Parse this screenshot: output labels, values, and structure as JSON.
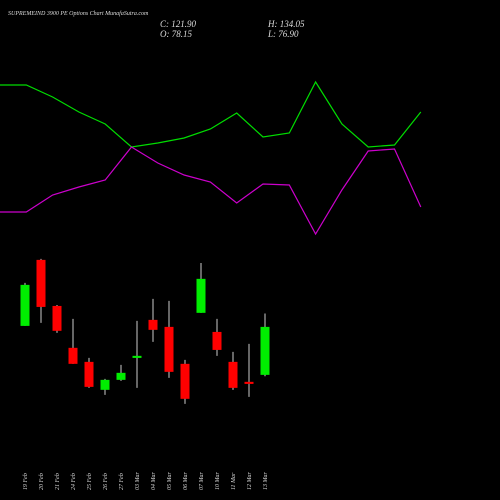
{
  "chart_data": [
    {
      "type": "candlestick",
      "title": "SUPREMEIND 3900 PE Options Chart MunafaSutra.com",
      "ohlc_labels": [
        "C: 121.90",
        "H: 134.05",
        "O: 78.15",
        "L: 76.90"
      ],
      "categories": [
        "19 Feb",
        "20 Feb",
        "21 Feb",
        "24 Feb",
        "25 Feb",
        "26 Feb",
        "27 Feb",
        "03 Mar",
        "04 Mar",
        "05 Mar",
        "06 Mar",
        "07 Mar",
        "10 Mar",
        "11 Mar",
        "12 Mar",
        "13 Mar"
      ],
      "open": [
        122.8,
        183.0,
        141.0,
        102.8,
        90.0,
        64.5,
        73.6,
        93.6,
        128.3,
        121.9,
        88.2,
        134.7,
        117.3,
        90.0,
        71.8,
        78.15
      ],
      "high": [
        162.0,
        183.9,
        141.9,
        129.2,
        93.6,
        74.5,
        87.3,
        127.4,
        147.4,
        145.6,
        91.8,
        180.2,
        129.2,
        99.1,
        106.4,
        134.05
      ],
      "low": [
        122.8,
        125.5,
        116.4,
        88.2,
        66.3,
        59.9,
        72.7,
        66.3,
        108.2,
        75.4,
        51.7,
        134.7,
        95.5,
        64.5,
        58.1,
        76.9
      ],
      "close": [
        160.2,
        140.1,
        118.3,
        88.2,
        67.2,
        73.6,
        80.0,
        95.5,
        119.2,
        80.9,
        56.3,
        165.7,
        100.9,
        66.3,
        69.9,
        121.9
      ],
      "up_color": "#00ee00",
      "down_color": "#ff0000",
      "ylim": [
        37,
        192
      ]
    },
    {
      "type": "line",
      "series": [
        {
          "color": "#00dd00",
          "values": [
            165,
            165,
            153,
            138,
            126,
            103,
            107,
            112,
            121,
            137,
            113,
            117,
            168,
            126,
            103,
            105,
            138
          ]
        },
        {
          "color": "#cc00cc",
          "values": [
            38,
            38,
            55,
            63,
            70,
            103,
            87,
            75,
            68,
            47,
            66,
            65,
            16,
            60,
            99,
            101,
            43
          ]
        }
      ],
      "ylim": [
        0,
        190
      ]
    }
  ]
}
